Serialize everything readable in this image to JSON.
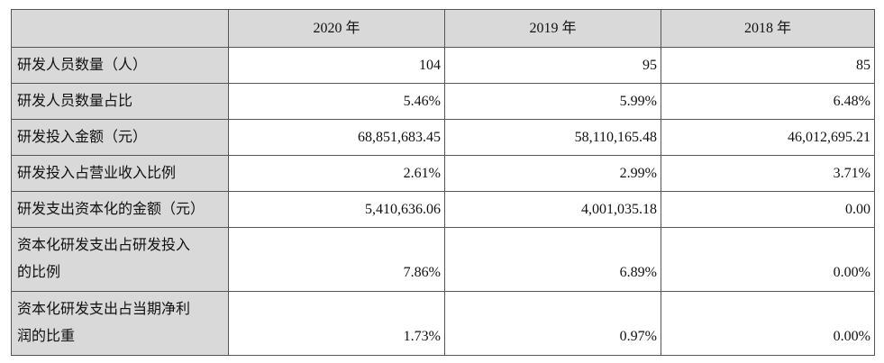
{
  "table": {
    "headers": [
      "2020 年",
      "2019 年",
      "2018 年"
    ],
    "rows": [
      {
        "label_lines": [
          "研发人员数量（人）"
        ],
        "values": [
          "104",
          "95",
          "85"
        ]
      },
      {
        "label_lines": [
          "研发人员数量占比"
        ],
        "values": [
          "5.46%",
          "5.99%",
          "6.48%"
        ]
      },
      {
        "label_lines": [
          "研发投入金额（元）"
        ],
        "values": [
          "68,851,683.45",
          "58,110,165.48",
          "46,012,695.21"
        ]
      },
      {
        "label_lines": [
          "研发投入占营业收入比例"
        ],
        "values": [
          "2.61%",
          "2.99%",
          "3.71%"
        ]
      },
      {
        "label_lines": [
          "研发支出资本化的金额（元）"
        ],
        "values": [
          "5,410,636.06",
          "4,001,035.18",
          "0.00"
        ]
      },
      {
        "label_lines": [
          "资本化研发支出占研发投入",
          "的比例"
        ],
        "values": [
          "7.86%",
          "6.89%",
          "0.00%"
        ]
      },
      {
        "label_lines": [
          "资本化研发支出占当期净利",
          "润的比重"
        ],
        "values": [
          "1.73%",
          "0.97%",
          "0.00%"
        ]
      }
    ]
  }
}
